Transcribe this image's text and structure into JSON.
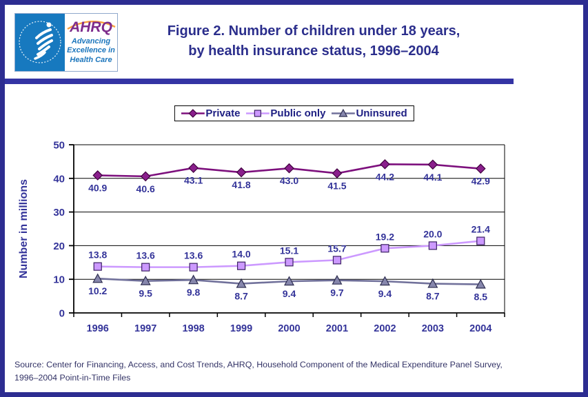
{
  "colors": {
    "page_border": "#2D2D91",
    "header_rule": "#3434A4",
    "title_text": "#2B2E8C",
    "axis_text": "#333399",
    "legend_text": "#1F2083",
    "source_text": "#333366",
    "hhs_blue": "#1779BF",
    "ahrq_purple": "#7D2B8B",
    "ahrq_tagline_blue": "#1B75BC",
    "ahrq_arc_orange": "#F9A13C"
  },
  "header": {
    "title_line1": "Figure 2. Number of children under 18 years,",
    "title_line2": "by health insurance status, 1996–2004",
    "logo": {
      "ahrq_acronym": "AHRQ",
      "tagline_line1": "Advancing",
      "tagline_line2": "Excellence in",
      "tagline_line3": "Health Care"
    }
  },
  "chart_data": {
    "type": "line",
    "categories": [
      "1996",
      "1997",
      "1998",
      "1999",
      "2000",
      "2001",
      "2002",
      "2003",
      "2004"
    ],
    "series": [
      {
        "name": "Private",
        "values": [
          40.9,
          40.6,
          43.1,
          41.8,
          43.0,
          41.5,
          44.2,
          44.1,
          42.9
        ],
        "color": "#7D107D",
        "marker": "diamond",
        "marker_fill": "#8A1F8C",
        "marker_stroke": "#40003F",
        "label_position": "below"
      },
      {
        "name": "Public only",
        "values": [
          13.8,
          13.6,
          13.6,
          14.0,
          15.1,
          15.7,
          19.2,
          20.0,
          21.4
        ],
        "color": "#CC99FF",
        "marker": "square",
        "marker_fill": "#CC99FF",
        "marker_stroke": "#3B2063",
        "label_position": "above"
      },
      {
        "name": "Uninsured",
        "values": [
          10.2,
          9.5,
          9.8,
          8.7,
          9.4,
          9.7,
          9.4,
          8.7,
          8.5
        ],
        "color": "#71719B",
        "marker": "triangle",
        "marker_fill": "#8686AC",
        "marker_stroke": "#2E2E50",
        "label_position": "below"
      }
    ],
    "ylabel": "Number in millions",
    "ylim": [
      0,
      50
    ],
    "yticks": [
      0,
      10,
      20,
      30,
      40,
      50
    ],
    "grid": true,
    "legend_position": "top-center",
    "data_labels": true,
    "label_decimals": 1
  },
  "footer": {
    "source_line1": "Source: Center for Financing, Access, and Cost Trends, AHRQ, Household Component of the Medical Expenditure Panel Survey,",
    "source_line2": "1996–2004 Point-in-Time Files"
  }
}
